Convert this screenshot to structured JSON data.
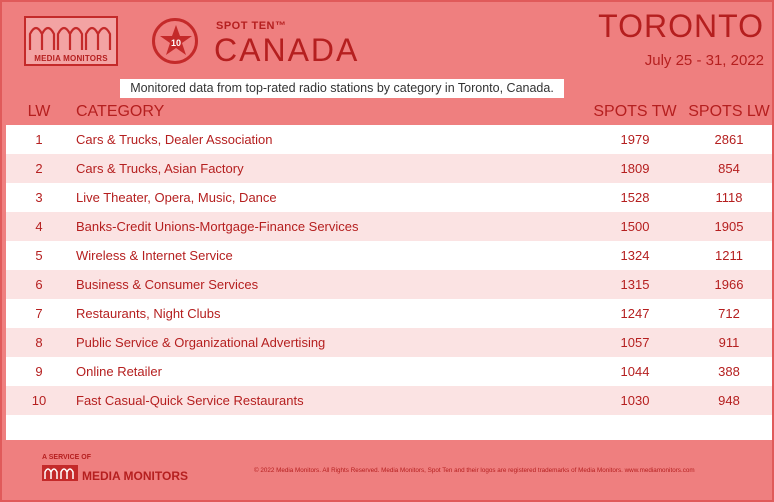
{
  "header": {
    "logo_text": "MEDIA MONITORS",
    "badge_number": "10",
    "spot_ten": "SPOT TEN™",
    "country": "CANADA",
    "city": "TORONTO",
    "date_range": "July 25 - 31, 2022",
    "subtitle": "Monitored data from top-rated radio stations by category in Toronto, Canada."
  },
  "table": {
    "columns": {
      "rank": "LW",
      "category": "CATEGORY",
      "spots_tw": "SPOTS TW",
      "spots_lw": "SPOTS LW"
    },
    "rows": [
      {
        "rank": "1",
        "category": "Cars & Trucks, Dealer Association",
        "spots_tw": "1979",
        "spots_lw": "2861"
      },
      {
        "rank": "2",
        "category": "Cars & Trucks, Asian Factory",
        "spots_tw": "1809",
        "spots_lw": "854"
      },
      {
        "rank": "3",
        "category": "Live Theater, Opera, Music, Dance",
        "spots_tw": "1528",
        "spots_lw": "1118"
      },
      {
        "rank": "4",
        "category": "Banks-Credit Unions-Mortgage-Finance Services",
        "spots_tw": "1500",
        "spots_lw": "1905"
      },
      {
        "rank": "5",
        "category": "Wireless & Internet Service",
        "spots_tw": "1324",
        "spots_lw": "1211"
      },
      {
        "rank": "6",
        "category": "Business & Consumer Services",
        "spots_tw": "1315",
        "spots_lw": "1966"
      },
      {
        "rank": "7",
        "category": "Restaurants, Night Clubs",
        "spots_tw": "1247",
        "spots_lw": "712"
      },
      {
        "rank": "8",
        "category": "Public Service & Organizational Advertising",
        "spots_tw": "1057",
        "spots_lw": "911"
      },
      {
        "rank": "9",
        "category": "Online Retailer",
        "spots_tw": "1044",
        "spots_lw": "388"
      },
      {
        "rank": "10",
        "category": "Fast Casual-Quick Service Restaurants",
        "spots_tw": "1030",
        "spots_lw": "948"
      }
    ]
  },
  "footer": {
    "service_of": "A SERVICE OF",
    "brand": "MEDIA MONITORS",
    "copyright": "© 2022 Media Monitors. All Rights Reserved. Media Monitors, Spot Ten and their logos are registered trademarks of Media Monitors. www.mediamonitors.com"
  },
  "colors": {
    "background": "#ef7f7f",
    "accent": "#b51f1f",
    "row_alt": "#fbe3e3",
    "row": "#ffffff"
  },
  "icons": {
    "logo": "media-monitors-waveform-logo",
    "badge": "star-badge-icon"
  }
}
